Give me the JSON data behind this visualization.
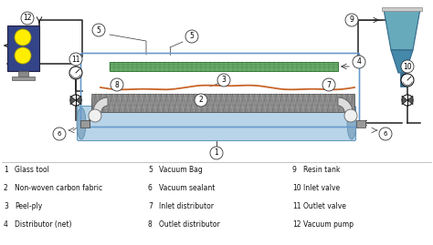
{
  "bg_color": "#ffffff",
  "legend_items": [
    [
      "1",
      "Glass tool"
    ],
    [
      "2",
      "Non-woven carbon fabric"
    ],
    [
      "3",
      "Peel-ply"
    ],
    [
      "4",
      "Distributor (net)"
    ],
    [
      "5",
      "Vacuum Bag"
    ],
    [
      "6",
      "Vacuum sealant"
    ],
    [
      "7",
      "Inlet distributor"
    ],
    [
      "8",
      "Outlet distributor"
    ],
    [
      "9",
      "Resin tank"
    ],
    [
      "10",
      "Inlet valve"
    ],
    [
      "11",
      "Outlet valve"
    ],
    [
      "12",
      "Vacuum pump"
    ]
  ]
}
